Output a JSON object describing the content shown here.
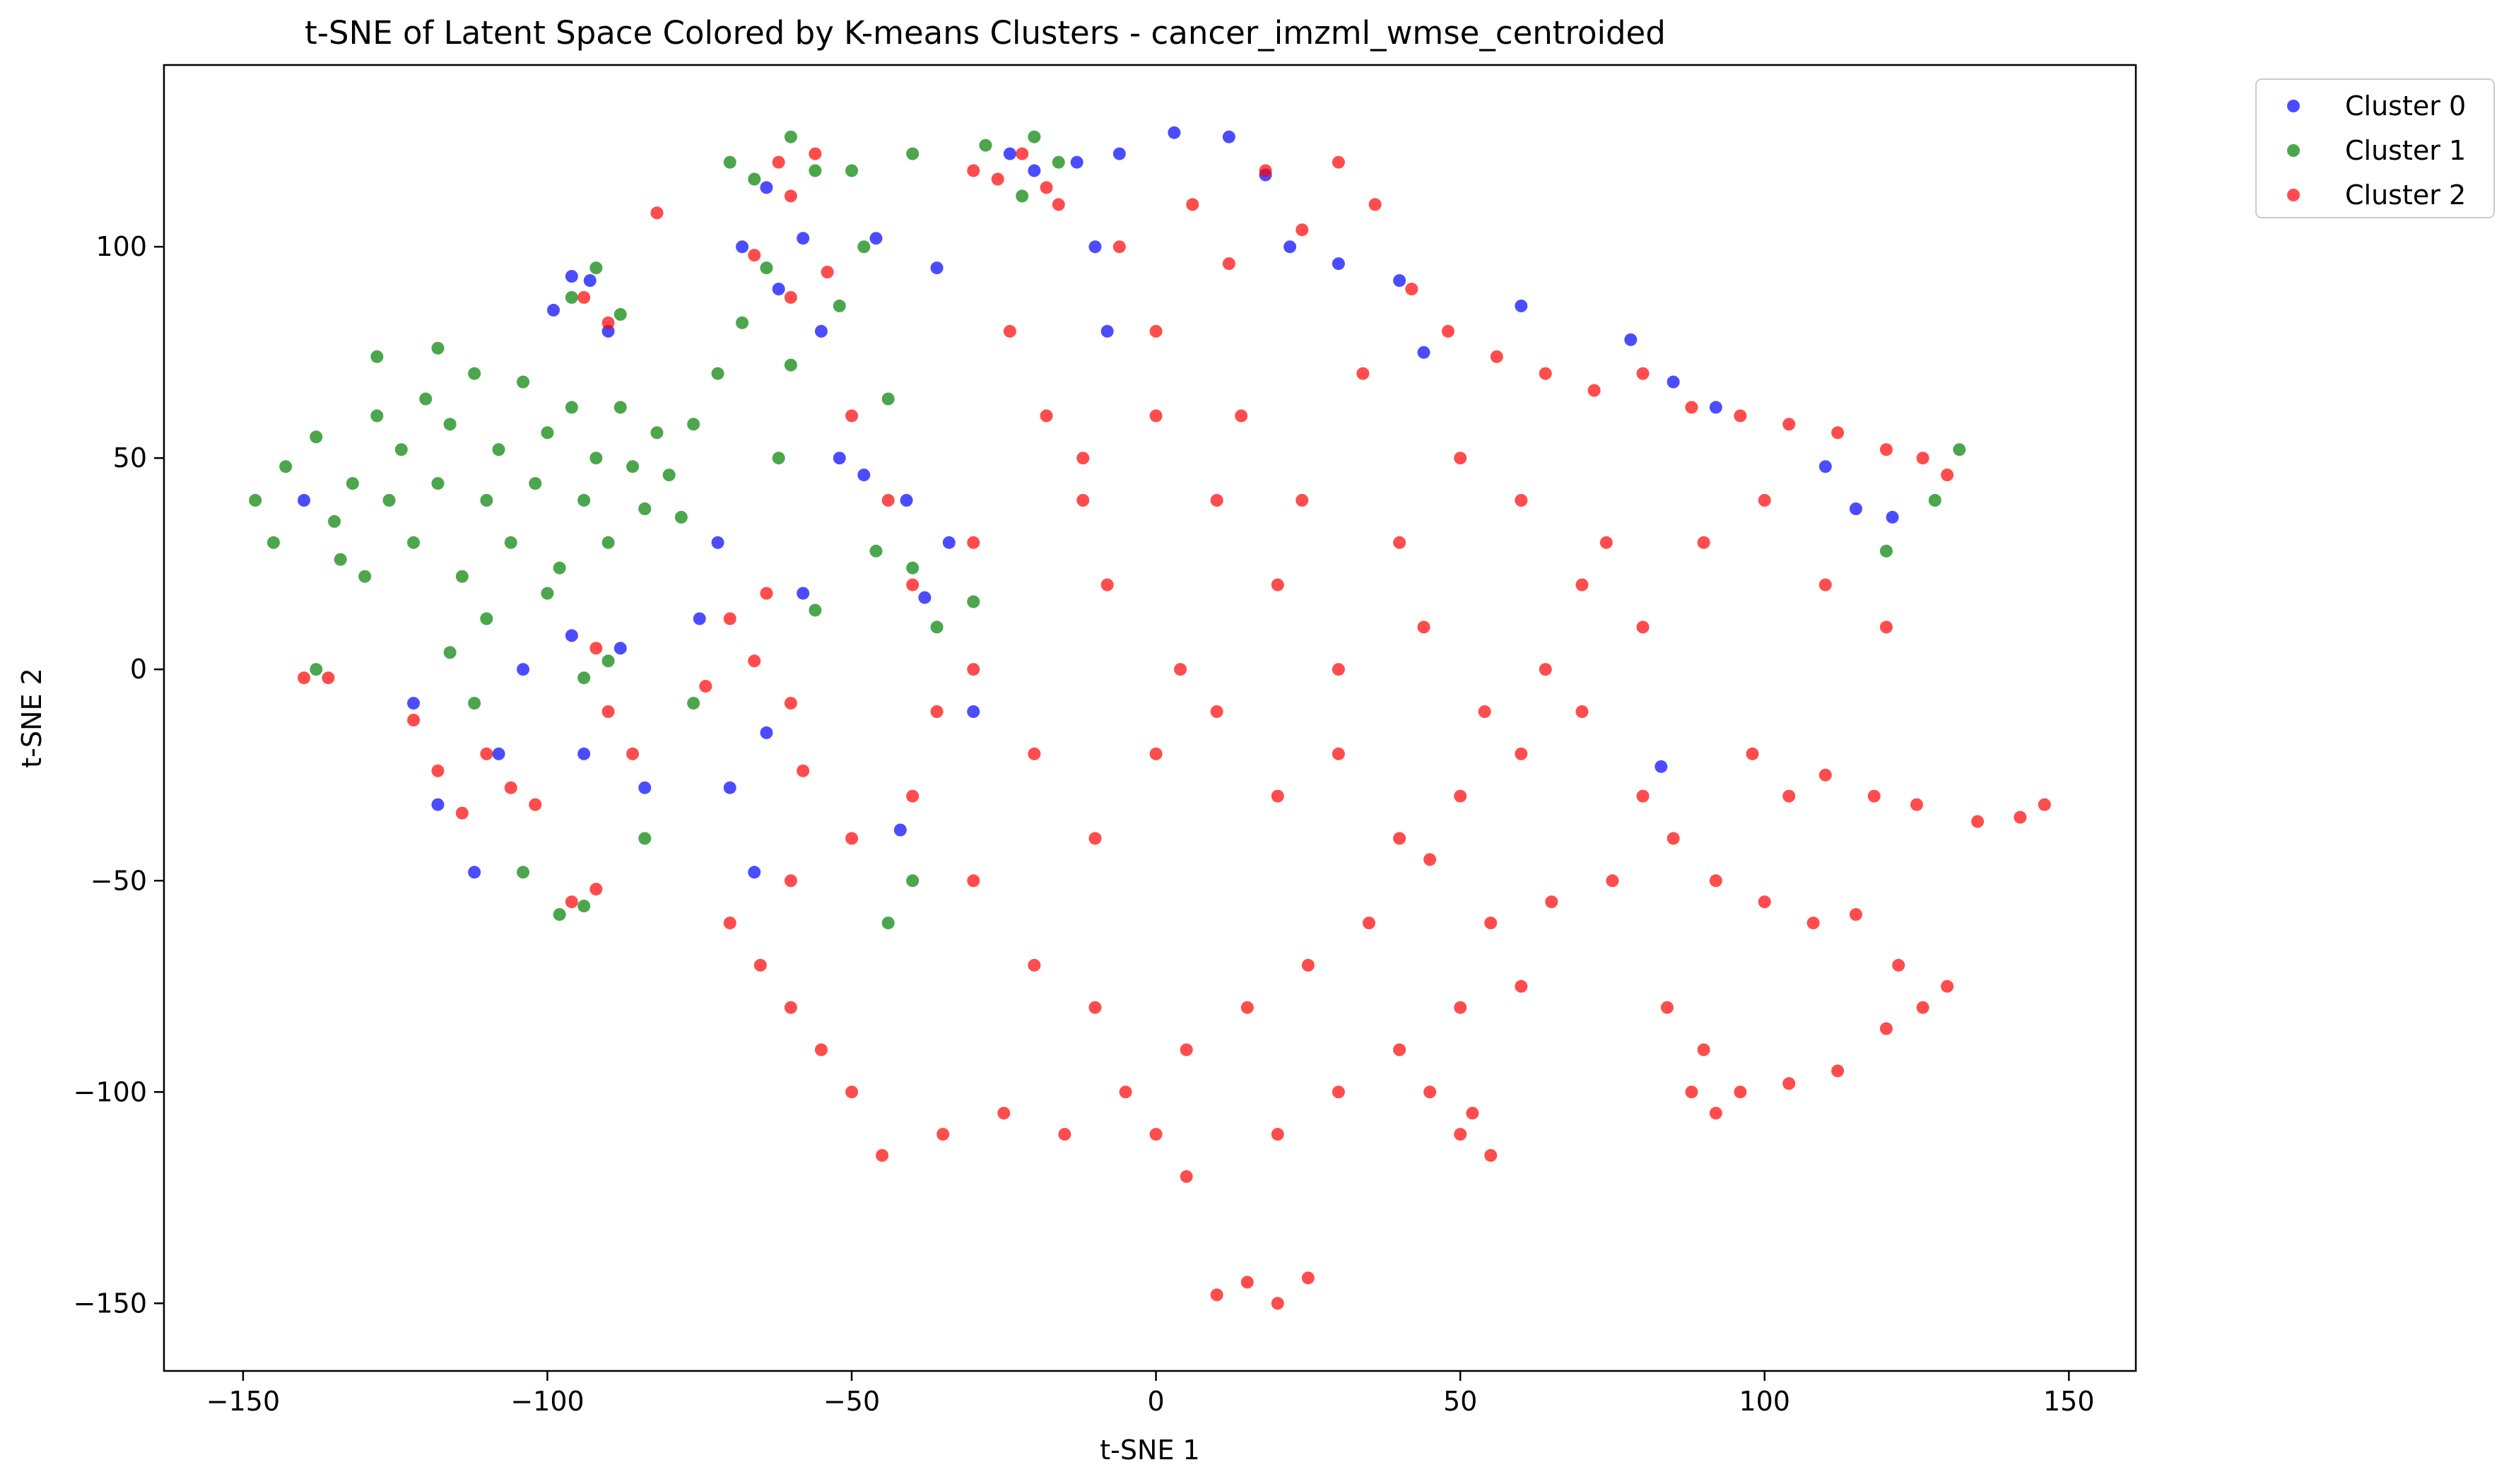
{
  "chart_data": {
    "type": "scatter",
    "title": "t-SNE of Latent Space Colored by K-means Clusters - cancer_imzml_wmse_centroided",
    "xlabel": "t-SNE 1",
    "ylabel": "t-SNE 2",
    "xlim": [
      -163,
      161
    ],
    "ylim": [
      -166,
      143
    ],
    "x_ticks": [
      {
        "value": -150,
        "label": "−150"
      },
      {
        "value": -100,
        "label": "−100"
      },
      {
        "value": -50,
        "label": "−50"
      },
      {
        "value": 0,
        "label": "0"
      },
      {
        "value": 50,
        "label": "50"
      },
      {
        "value": 100,
        "label": "100"
      },
      {
        "value": 150,
        "label": "150"
      }
    ],
    "y_ticks": [
      {
        "value": 100,
        "label": "100"
      },
      {
        "value": 50,
        "label": "50"
      },
      {
        "value": 0,
        "label": "0"
      },
      {
        "value": -50,
        "label": "−50"
      },
      {
        "value": -100,
        "label": "−100"
      },
      {
        "value": -150,
        "label": "−150"
      }
    ],
    "grid": false,
    "legend_position": "outside-top-right",
    "marker_alpha": 0.7,
    "series": [
      {
        "name": "Cluster 0",
        "color": "#0000ff",
        "points": [
          [
            -140,
            40
          ],
          [
            -122,
            -8
          ],
          [
            -118,
            -32
          ],
          [
            -112,
            -48
          ],
          [
            -108,
            -20
          ],
          [
            -104,
            0
          ],
          [
            -99,
            85
          ],
          [
            -96,
            93
          ],
          [
            -93,
            92
          ],
          [
            -90,
            80
          ],
          [
            -94,
            -20
          ],
          [
            -96,
            8
          ],
          [
            -88,
            5
          ],
          [
            -84,
            -28
          ],
          [
            -72,
            30
          ],
          [
            -70,
            -28
          ],
          [
            -68,
            100
          ],
          [
            -64,
            114
          ],
          [
            -62,
            90
          ],
          [
            -58,
            102
          ],
          [
            -55,
            80
          ],
          [
            -52,
            50
          ],
          [
            -48,
            46
          ],
          [
            -46,
            102
          ],
          [
            -41,
            40
          ],
          [
            -38,
            17
          ],
          [
            -36,
            95
          ],
          [
            -34,
            30
          ],
          [
            -30,
            -10
          ],
          [
            -24,
            122
          ],
          [
            -20,
            118
          ],
          [
            -13,
            120
          ],
          [
            -10,
            100
          ],
          [
            -8,
            80
          ],
          [
            -6,
            122
          ],
          [
            3,
            127
          ],
          [
            12,
            126
          ],
          [
            18,
            117
          ],
          [
            22,
            100
          ],
          [
            30,
            96
          ],
          [
            40,
            92
          ],
          [
            44,
            75
          ],
          [
            60,
            86
          ],
          [
            78,
            78
          ],
          [
            85,
            68
          ],
          [
            92,
            62
          ],
          [
            110,
            48
          ],
          [
            115,
            38
          ],
          [
            121,
            36
          ],
          [
            83,
            -23
          ],
          [
            -58,
            18
          ],
          [
            -64,
            -15
          ],
          [
            -75,
            12
          ],
          [
            -66,
            -48
          ],
          [
            -42,
            -38
          ]
        ]
      },
      {
        "name": "Cluster 1",
        "color": "#008000",
        "points": [
          [
            -148,
            40
          ],
          [
            -145,
            30
          ],
          [
            -143,
            48
          ],
          [
            -138,
            55
          ],
          [
            -135,
            35
          ],
          [
            -132,
            44
          ],
          [
            -130,
            22
          ],
          [
            -128,
            60
          ],
          [
            -126,
            40
          ],
          [
            -124,
            52
          ],
          [
            -122,
            30
          ],
          [
            -120,
            64
          ],
          [
            -118,
            44
          ],
          [
            -116,
            58
          ],
          [
            -114,
            22
          ],
          [
            -112,
            70
          ],
          [
            -110,
            40
          ],
          [
            -108,
            52
          ],
          [
            -106,
            30
          ],
          [
            -104,
            68
          ],
          [
            -102,
            44
          ],
          [
            -100,
            56
          ],
          [
            -98,
            24
          ],
          [
            -96,
            62
          ],
          [
            -94,
            40
          ],
          [
            -92,
            50
          ],
          [
            -90,
            30
          ],
          [
            -88,
            62
          ],
          [
            -86,
            48
          ],
          [
            -84,
            38
          ],
          [
            -82,
            56
          ],
          [
            -80,
            46
          ],
          [
            -78,
            36
          ],
          [
            -76,
            58
          ],
          [
            -134,
            26
          ],
          [
            -128,
            74
          ],
          [
            -118,
            76
          ],
          [
            -110,
            12
          ],
          [
            -100,
            18
          ],
          [
            -96,
            88
          ],
          [
            -92,
            95
          ],
          [
            -88,
            84
          ],
          [
            -90,
            2
          ],
          [
            -94,
            -2
          ],
          [
            -116,
            4
          ],
          [
            -112,
            -8
          ],
          [
            -104,
            -48
          ],
          [
            -98,
            -58
          ],
          [
            -94,
            -56
          ],
          [
            -138,
            0
          ],
          [
            -70,
            120
          ],
          [
            -66,
            116
          ],
          [
            -60,
            126
          ],
          [
            -56,
            118
          ],
          [
            -50,
            118
          ],
          [
            -40,
            122
          ],
          [
            -28,
            124
          ],
          [
            -20,
            126
          ],
          [
            -16,
            120
          ],
          [
            -68,
            82
          ],
          [
            -64,
            95
          ],
          [
            -60,
            72
          ],
          [
            -52,
            86
          ],
          [
            -48,
            100
          ],
          [
            -44,
            64
          ],
          [
            -40,
            24
          ],
          [
            -36,
            10
          ],
          [
            -30,
            16
          ],
          [
            -62,
            50
          ],
          [
            -56,
            14
          ],
          [
            -44,
            -60
          ],
          [
            -40,
            -50
          ],
          [
            -76,
            -8
          ],
          [
            -84,
            -40
          ],
          [
            -72,
            70
          ],
          [
            132,
            52
          ],
          [
            128,
            40
          ],
          [
            120,
            28
          ],
          [
            -22,
            112
          ],
          [
            -46,
            28
          ]
        ]
      },
      {
        "name": "Cluster 2",
        "color": "#ff0000",
        "points": [
          [
            -140,
            -2
          ],
          [
            -136,
            -2
          ],
          [
            -122,
            -12
          ],
          [
            -118,
            -24
          ],
          [
            -114,
            -34
          ],
          [
            -110,
            -20
          ],
          [
            -106,
            -28
          ],
          [
            -102,
            -32
          ],
          [
            -96,
            -55
          ],
          [
            -92,
            -52
          ],
          [
            -90,
            -10
          ],
          [
            -86,
            -20
          ],
          [
            -92,
            5
          ],
          [
            -82,
            108
          ],
          [
            -94,
            88
          ],
          [
            -90,
            82
          ],
          [
            -62,
            120
          ],
          [
            -60,
            112
          ],
          [
            -56,
            122
          ],
          [
            -30,
            118
          ],
          [
            -26,
            116
          ],
          [
            -22,
            122
          ],
          [
            -18,
            114
          ],
          [
            -16,
            110
          ],
          [
            -66,
            98
          ],
          [
            -60,
            88
          ],
          [
            -54,
            94
          ],
          [
            -70,
            12
          ],
          [
            -66,
            2
          ],
          [
            -60,
            -8
          ],
          [
            -74,
            -4
          ],
          [
            -64,
            18
          ],
          [
            -58,
            -24
          ],
          [
            -50,
            60
          ],
          [
            -44,
            40
          ],
          [
            -40,
            20
          ],
          [
            -36,
            -10
          ],
          [
            -30,
            30
          ],
          [
            -24,
            80
          ],
          [
            -18,
            60
          ],
          [
            -12,
            40
          ],
          [
            -6,
            100
          ],
          [
            0,
            80
          ],
          [
            6,
            110
          ],
          [
            12,
            96
          ],
          [
            18,
            118
          ],
          [
            24,
            104
          ],
          [
            30,
            120
          ],
          [
            36,
            110
          ],
          [
            42,
            90
          ],
          [
            48,
            80
          ],
          [
            56,
            74
          ],
          [
            64,
            70
          ],
          [
            72,
            66
          ],
          [
            80,
            70
          ],
          [
            88,
            62
          ],
          [
            96,
            60
          ],
          [
            104,
            58
          ],
          [
            112,
            56
          ],
          [
            120,
            52
          ],
          [
            126,
            50
          ],
          [
            130,
            46
          ],
          [
            0,
            60
          ],
          [
            10,
            40
          ],
          [
            20,
            20
          ],
          [
            30,
            0
          ],
          [
            40,
            30
          ],
          [
            50,
            50
          ],
          [
            60,
            40
          ],
          [
            70,
            20
          ],
          [
            80,
            10
          ],
          [
            90,
            30
          ],
          [
            100,
            40
          ],
          [
            110,
            20
          ],
          [
            120,
            10
          ],
          [
            -30,
            0
          ],
          [
            -20,
            -20
          ],
          [
            -10,
            -40
          ],
          [
            0,
            -20
          ],
          [
            10,
            -10
          ],
          [
            20,
            -30
          ],
          [
            30,
            -20
          ],
          [
            40,
            -40
          ],
          [
            50,
            -30
          ],
          [
            60,
            -20
          ],
          [
            70,
            -10
          ],
          [
            80,
            -30
          ],
          [
            85,
            -40
          ],
          [
            75,
            -50
          ],
          [
            65,
            -55
          ],
          [
            55,
            -60
          ],
          [
            45,
            -45
          ],
          [
            35,
            -60
          ],
          [
            25,
            -70
          ],
          [
            15,
            -80
          ],
          [
            5,
            -90
          ],
          [
            -5,
            -100
          ],
          [
            -15,
            -110
          ],
          [
            -25,
            -105
          ],
          [
            -35,
            -110
          ],
          [
            -45,
            -115
          ],
          [
            -50,
            -100
          ],
          [
            -55,
            -90
          ],
          [
            -60,
            -80
          ],
          [
            -65,
            -70
          ],
          [
            -70,
            -60
          ],
          [
            -60,
            -50
          ],
          [
            -50,
            -40
          ],
          [
            -40,
            -30
          ],
          [
            -30,
            -50
          ],
          [
            -20,
            -70
          ],
          [
            -10,
            -80
          ],
          [
            0,
            -110
          ],
          [
            5,
            -120
          ],
          [
            20,
            -110
          ],
          [
            30,
            -100
          ],
          [
            40,
            -90
          ],
          [
            50,
            -80
          ],
          [
            60,
            -75
          ],
          [
            45,
            -100
          ],
          [
            50,
            -110
          ],
          [
            55,
            -115
          ],
          [
            52,
            -105
          ],
          [
            15,
            -145
          ],
          [
            20,
            -150
          ],
          [
            10,
            -148
          ],
          [
            25,
            -144
          ],
          [
            98,
            -20
          ],
          [
            104,
            -30
          ],
          [
            110,
            -25
          ],
          [
            118,
            -30
          ],
          [
            125,
            -32
          ],
          [
            135,
            -36
          ],
          [
            142,
            -35
          ],
          [
            146,
            -32
          ],
          [
            92,
            -50
          ],
          [
            100,
            -55
          ],
          [
            108,
            -60
          ],
          [
            115,
            -58
          ],
          [
            122,
            -70
          ],
          [
            130,
            -75
          ],
          [
            84,
            -80
          ],
          [
            90,
            -90
          ],
          [
            96,
            -100
          ],
          [
            104,
            -98
          ],
          [
            112,
            -95
          ],
          [
            120,
            -85
          ],
          [
            126,
            -80
          ],
          [
            88,
            -100
          ],
          [
            92,
            -105
          ],
          [
            -12,
            50
          ],
          [
            -8,
            20
          ],
          [
            4,
            0
          ],
          [
            14,
            60
          ],
          [
            24,
            40
          ],
          [
            34,
            70
          ],
          [
            44,
            10
          ],
          [
            54,
            -10
          ],
          [
            64,
            0
          ],
          [
            74,
            30
          ]
        ]
      }
    ]
  }
}
